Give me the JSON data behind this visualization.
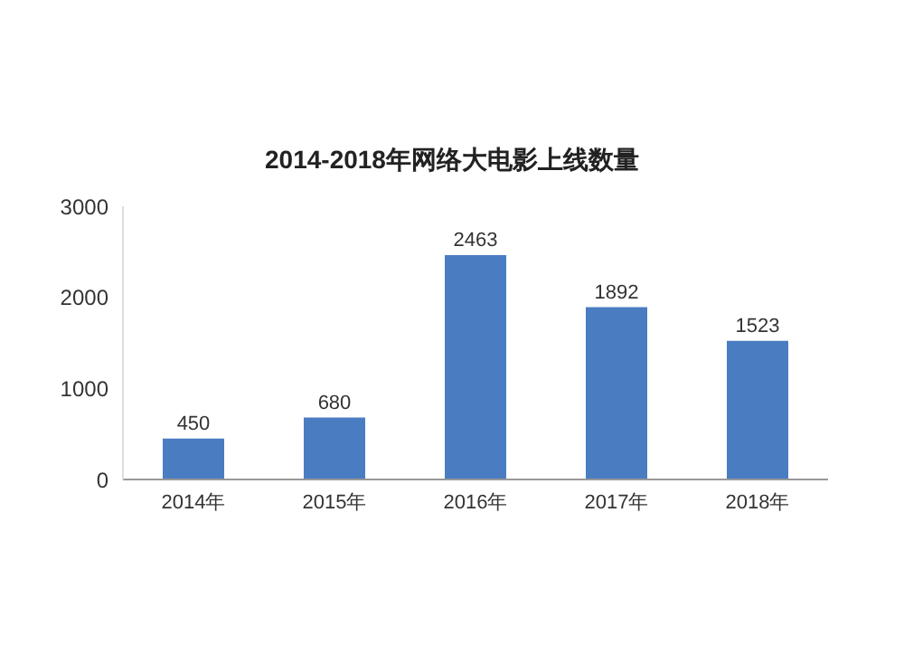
{
  "chart_data": {
    "type": "bar",
    "title": "2014-2018年网络大电影上线数量",
    "categories": [
      "2014年",
      "2015年",
      "2016年",
      "2017年",
      "2018年"
    ],
    "values": [
      450,
      680,
      2463,
      1892,
      1523
    ],
    "color": "#4a7cc2",
    "ylim": [
      0,
      3000
    ],
    "yticks": [
      0,
      1000,
      2000,
      3000
    ],
    "grid": false,
    "data_labels": true
  }
}
